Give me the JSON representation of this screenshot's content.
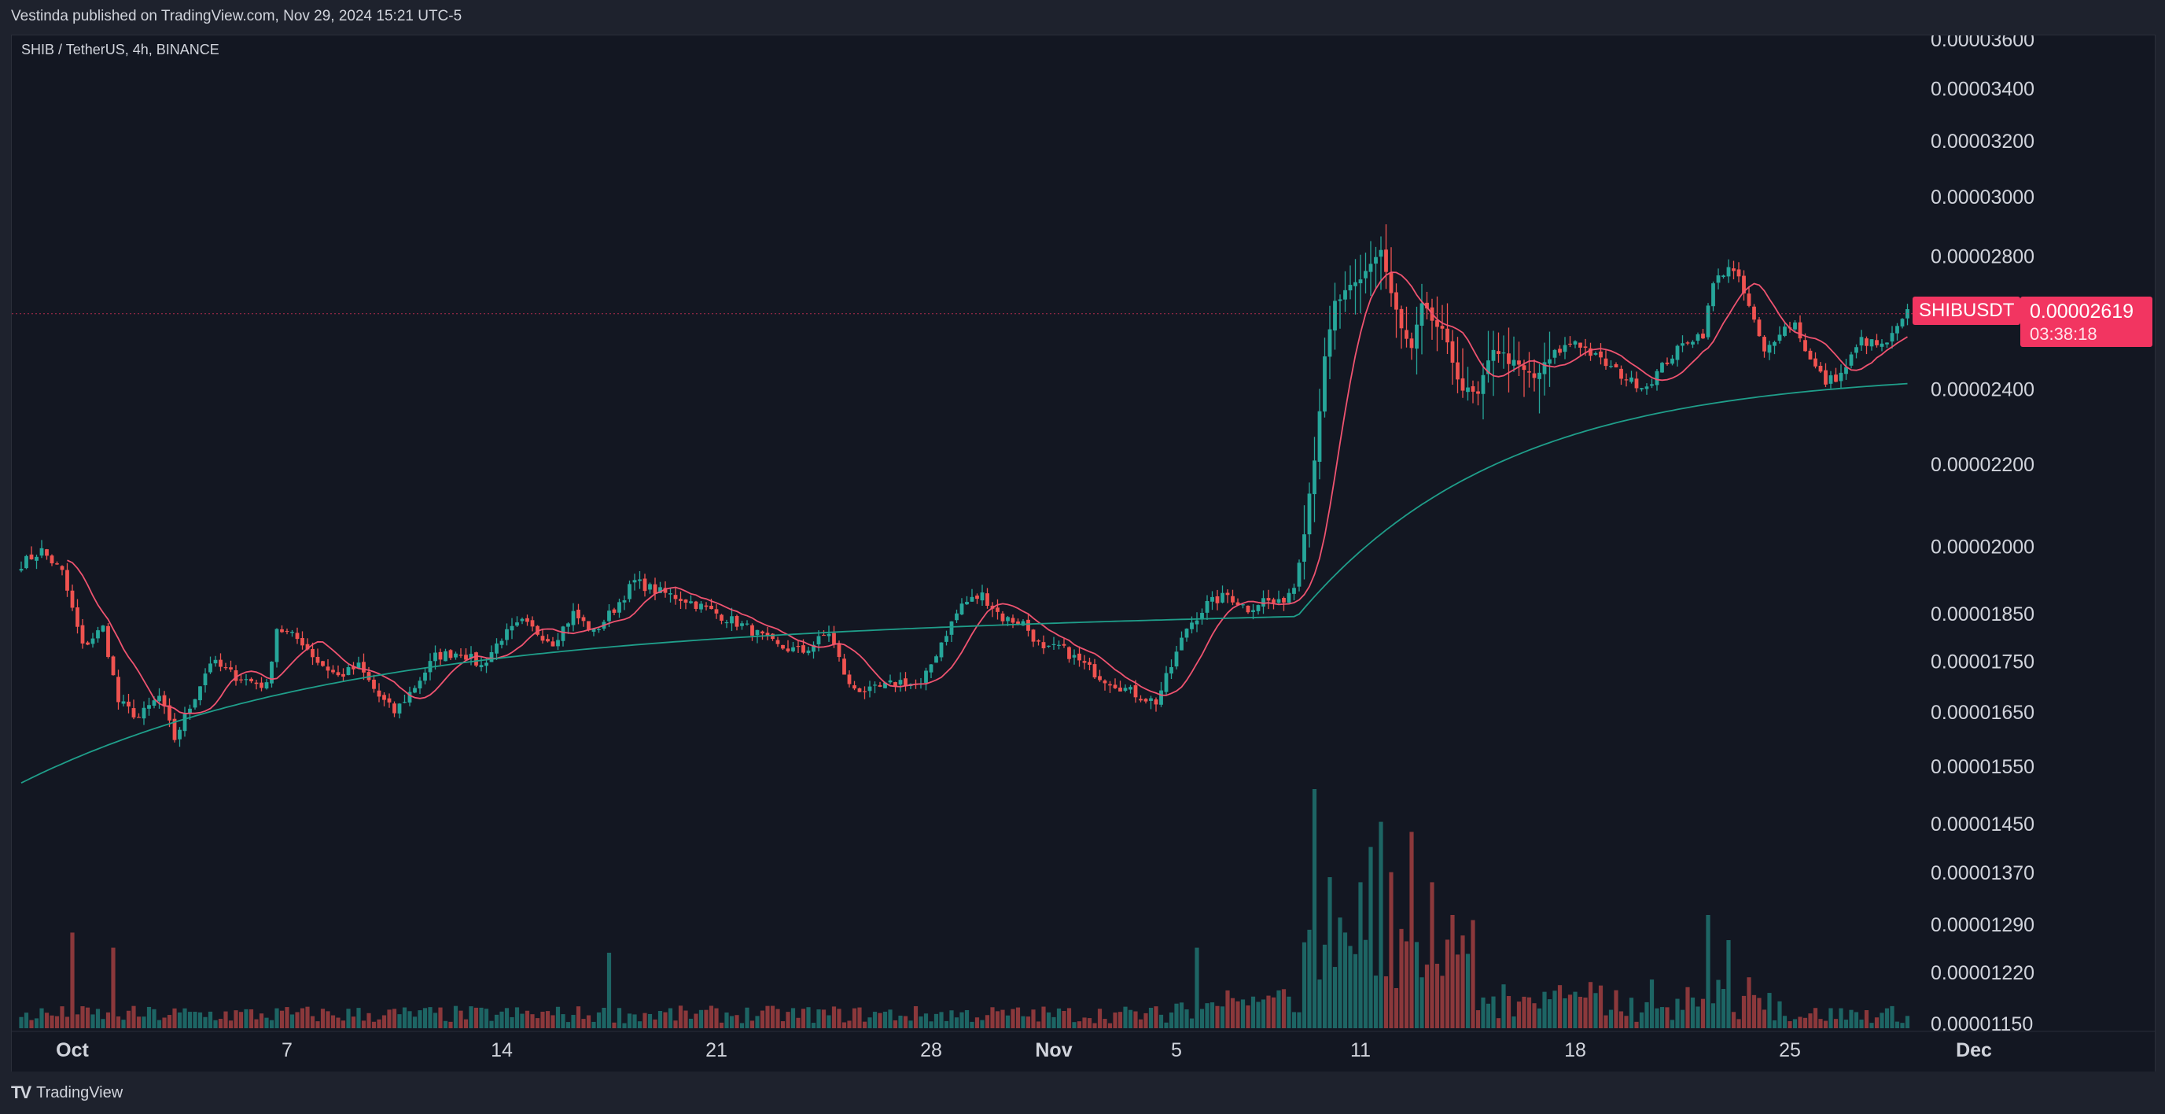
{
  "header": {
    "published": "Vestinda published on TradingView.com, Nov 29, 2024 15:21 UTC-5"
  },
  "symbol_line": "SHIB / TetherUS, 4h, BINANCE",
  "footer": {
    "logo_text": "TradingView"
  },
  "last_price": {
    "ticker": "SHIBUSDT",
    "value": "0.00002619",
    "countdown": "03:38:18",
    "color": "#f23561"
  },
  "colors": {
    "up": "#26a69a",
    "down": "#ef5350",
    "ma_fast": "#ef5370",
    "ma_mid": "#2fbf8f",
    "ma_slow": "#1f9e8a"
  },
  "chart_data": {
    "type": "candlestick",
    "interval": "4h",
    "scale": "log",
    "y_ticks": [
      "0.00003600",
      "0.00003400",
      "0.00003200",
      "0.00003000",
      "0.00002800",
      "0.00002400",
      "0.00002200",
      "0.00002000",
      "0.00001850",
      "0.00001750",
      "0.00001650",
      "0.00001550",
      "0.00001450",
      "0.00001370",
      "0.00001290",
      "0.00001220",
      "0.00001150"
    ],
    "x_ticks": [
      {
        "label": "Oct",
        "bold": true,
        "idx": 10
      },
      {
        "label": "7",
        "bold": false,
        "idx": 52
      },
      {
        "label": "14",
        "bold": false,
        "idx": 94
      },
      {
        "label": "21",
        "bold": false,
        "idx": 136
      },
      {
        "label": "28",
        "bold": false,
        "idx": 178
      },
      {
        "label": "Nov",
        "bold": true,
        "idx": 202
      },
      {
        "label": "5",
        "bold": false,
        "idx": 226
      },
      {
        "label": "11",
        "bold": false,
        "idx": 262
      },
      {
        "label": "18",
        "bold": false,
        "idx": 304
      },
      {
        "label": "25",
        "bold": false,
        "idx": 346
      },
      {
        "label": "Dec",
        "bold": true,
        "idx": 382
      }
    ],
    "anchors": [
      [
        0,
        1.96e-05
      ],
      [
        4,
        1.99e-05
      ],
      [
        8,
        1.94e-05
      ],
      [
        12,
        1.78e-05
      ],
      [
        16,
        1.82e-05
      ],
      [
        19,
        1.67e-05
      ],
      [
        23,
        1.64e-05
      ],
      [
        27,
        1.68e-05
      ],
      [
        30,
        1.6e-05
      ],
      [
        33,
        1.66e-05
      ],
      [
        37,
        1.75e-05
      ],
      [
        42,
        1.72e-05
      ],
      [
        48,
        1.7e-05
      ],
      [
        50,
        1.82e-05
      ],
      [
        55,
        1.79e-05
      ],
      [
        58,
        1.75e-05
      ],
      [
        62,
        1.72e-05
      ],
      [
        66,
        1.74e-05
      ],
      [
        70,
        1.68e-05
      ],
      [
        73,
        1.65e-05
      ],
      [
        77,
        1.7e-05
      ],
      [
        81,
        1.76e-05
      ],
      [
        86,
        1.77e-05
      ],
      [
        90,
        1.74e-05
      ],
      [
        94,
        1.8e-05
      ],
      [
        98,
        1.83e-05
      ],
      [
        104,
        1.79e-05
      ],
      [
        108,
        1.85e-05
      ],
      [
        112,
        1.81e-05
      ],
      [
        116,
        1.86e-05
      ],
      [
        120,
        1.92e-05
      ],
      [
        124,
        1.9e-05
      ],
      [
        130,
        1.88e-05
      ],
      [
        136,
        1.85e-05
      ],
      [
        142,
        1.82e-05
      ],
      [
        148,
        1.78e-05
      ],
      [
        153,
        1.77e-05
      ],
      [
        158,
        1.81e-05
      ],
      [
        162,
        1.7e-05
      ],
      [
        166,
        1.69e-05
      ],
      [
        172,
        1.71e-05
      ],
      [
        176,
        1.7e-05
      ],
      [
        180,
        1.79e-05
      ],
      [
        184,
        1.87e-05
      ],
      [
        188,
        1.89e-05
      ],
      [
        192,
        1.84e-05
      ],
      [
        196,
        1.83e-05
      ],
      [
        200,
        1.77e-05
      ],
      [
        203,
        1.78e-05
      ],
      [
        207,
        1.75e-05
      ],
      [
        211,
        1.72e-05
      ],
      [
        215,
        1.7e-05
      ],
      [
        219,
        1.68e-05
      ],
      [
        222,
        1.67e-05
      ],
      [
        225,
        1.74e-05
      ],
      [
        228,
        1.82e-05
      ],
      [
        232,
        1.87e-05
      ],
      [
        236,
        1.89e-05
      ],
      [
        240,
        1.86e-05
      ],
      [
        243,
        1.88e-05
      ],
      [
        246,
        1.87e-05
      ],
      [
        249,
        1.91e-05
      ],
      [
        251,
        2.04e-05
      ],
      [
        253,
        2.22e-05
      ],
      [
        255,
        2.48e-05
      ],
      [
        257,
        2.65e-05
      ],
      [
        259,
        2.68e-05
      ],
      [
        262,
        2.72e-05
      ],
      [
        264,
        2.78e-05
      ],
      [
        266,
        2.82e-05
      ],
      [
        268,
        2.68e-05
      ],
      [
        270,
        2.57e-05
      ],
      [
        272,
        2.51e-05
      ],
      [
        274,
        2.64e-05
      ],
      [
        278,
        2.56e-05
      ],
      [
        282,
        2.4e-05
      ],
      [
        285,
        2.38e-05
      ],
      [
        288,
        2.52e-05
      ],
      [
        292,
        2.47e-05
      ],
      [
        296,
        2.43e-05
      ],
      [
        300,
        2.5e-05
      ],
      [
        304,
        2.54e-05
      ],
      [
        308,
        2.49e-05
      ],
      [
        312,
        2.45e-05
      ],
      [
        315,
        2.42e-05
      ],
      [
        318,
        2.41e-05
      ],
      [
        322,
        2.48e-05
      ],
      [
        326,
        2.54e-05
      ],
      [
        329,
        2.56e-05
      ],
      [
        331,
        2.71e-05
      ],
      [
        334,
        2.77e-05
      ],
      [
        336,
        2.72e-05
      ],
      [
        338,
        2.64e-05
      ],
      [
        341,
        2.5e-05
      ],
      [
        344,
        2.57e-05
      ],
      [
        347,
        2.59e-05
      ],
      [
        350,
        2.48e-05
      ],
      [
        353,
        2.42e-05
      ],
      [
        356,
        2.44e-05
      ],
      [
        360,
        2.54e-05
      ],
      [
        364,
        2.52e-05
      ],
      [
        366,
        2.55e-05
      ],
      [
        369,
        2.62e-05
      ]
    ],
    "volume_peaks": [
      [
        10,
        0.38
      ],
      [
        18,
        0.32
      ],
      [
        115,
        0.3
      ],
      [
        230,
        0.32
      ],
      [
        253,
        0.95
      ],
      [
        256,
        0.6
      ],
      [
        262,
        0.58
      ],
      [
        264,
        0.72
      ],
      [
        266,
        0.82
      ],
      [
        268,
        0.62
      ],
      [
        272,
        0.78
      ],
      [
        276,
        0.58
      ],
      [
        280,
        0.45
      ],
      [
        330,
        0.45
      ],
      [
        334,
        0.35
      ]
    ],
    "ma_fast_period": 9,
    "ma_slow_start": 1.52e-05,
    "ma_slow_end": 2.45e-05
  }
}
